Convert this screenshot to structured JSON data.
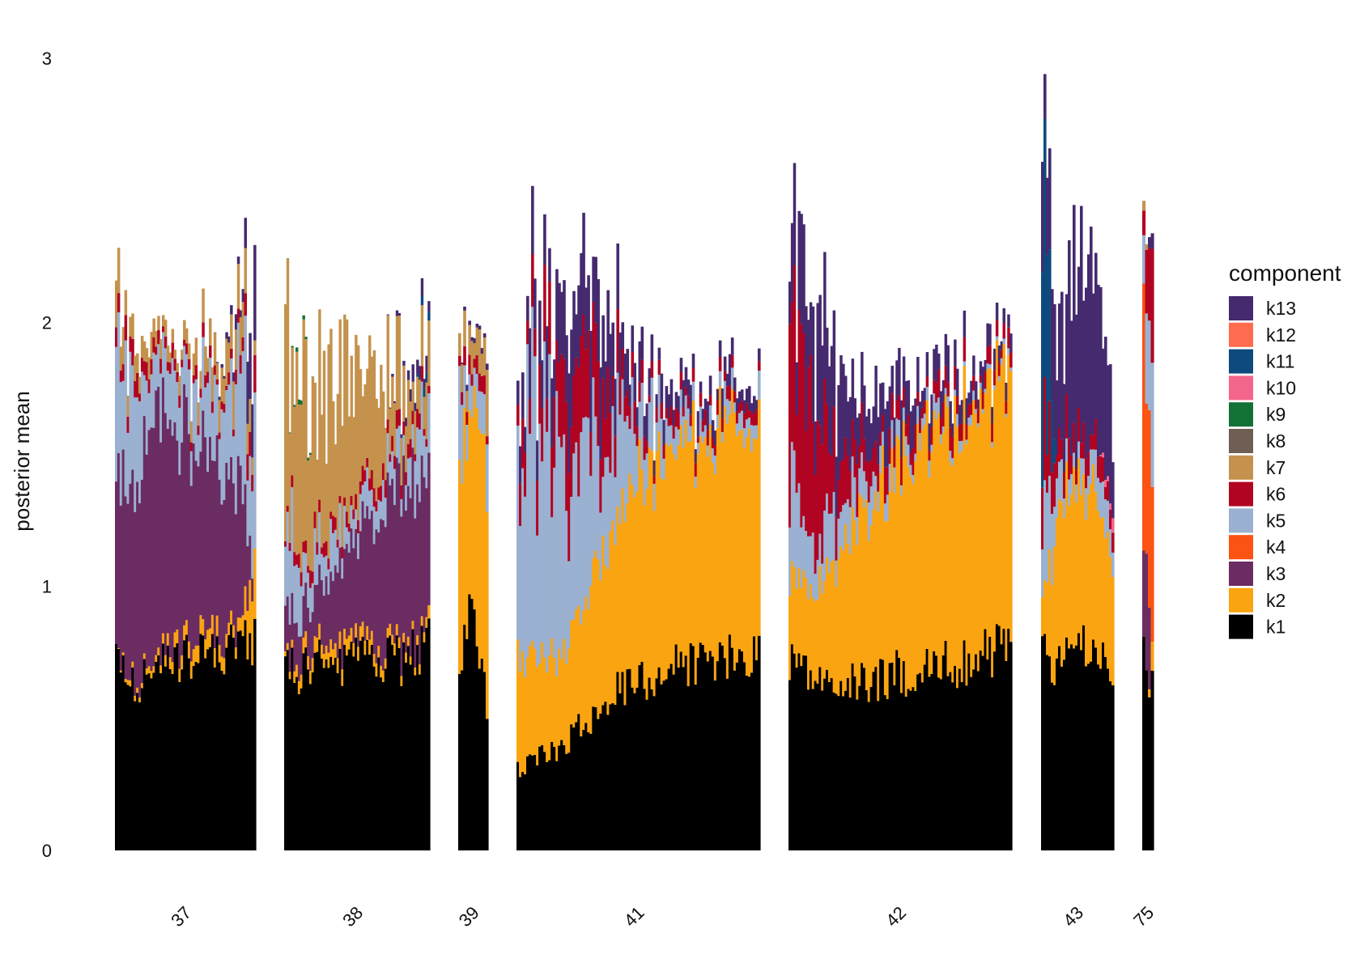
{
  "chart_data": {
    "type": "bar",
    "subtype": "stacked-bar-facets",
    "title": "",
    "xlabel": "",
    "ylabel": "posterior mean",
    "ylim": [
      0,
      3
    ],
    "yticks": [
      "0",
      "1",
      "2",
      "3"
    ],
    "grid": false,
    "legend_position": "right",
    "legend_title": "component",
    "legend_order": [
      "k13",
      "k12",
      "k11",
      "k10",
      "k9",
      "k8",
      "k7",
      "k6",
      "k5",
      "k4",
      "k3",
      "k2",
      "k1"
    ],
    "component_colors": {
      "k1": "#000000",
      "k2": "#FAA411",
      "k3": "#6B2C62",
      "k4": "#FC5212",
      "k5": "#9BB1D1",
      "k6": "#B10422",
      "k7": "#C5924D",
      "k8": "#6E5E54",
      "k9": "#137135",
      "k10": "#F3658B",
      "k11": "#0E4A7D",
      "k12": "#FF6B4E",
      "k13": "#452A6F"
    },
    "facets": [
      {
        "label": "37",
        "points": [
          {
            "k1": 0.75,
            "k2": 0.0,
            "k3": 0.65,
            "k5": 0.45,
            "k6": 0.05,
            "k7": 0.15,
            "k13": 0.0
          },
          {
            "k1": 0.62,
            "k2": 0.02,
            "k3": 0.75,
            "k5": 0.4,
            "k6": 0.08,
            "k7": 0.08,
            "k13": 0.0
          },
          {
            "k1": 0.66,
            "k2": 0.02,
            "k3": 0.85,
            "k5": 0.3,
            "k6": 0.05,
            "k7": 0.08,
            "k13": 0.0
          },
          {
            "k1": 0.68,
            "k2": 0.03,
            "k3": 0.9,
            "k5": 0.22,
            "k6": 0.04,
            "k7": 0.06,
            "k13": 0.0
          },
          {
            "k1": 0.7,
            "k2": 0.05,
            "k3": 0.85,
            "k5": 0.2,
            "k6": 0.05,
            "k7": 0.05,
            "k13": 0.0
          },
          {
            "k1": 0.72,
            "k2": 0.06,
            "k3": 0.8,
            "k5": 0.2,
            "k6": 0.03,
            "k7": 0.07,
            "k13": 0.0
          },
          {
            "k1": 0.73,
            "k2": 0.06,
            "k3": 0.72,
            "k5": 0.22,
            "k6": 0.04,
            "k7": 0.1,
            "k13": 0.0
          },
          {
            "k1": 0.74,
            "k2": 0.08,
            "k3": 0.65,
            "k5": 0.25,
            "k6": 0.03,
            "k7": 0.1,
            "k13": 0.0
          },
          {
            "k1": 0.75,
            "k2": 0.05,
            "k3": 0.6,
            "k5": 0.3,
            "k6": 0.03,
            "k7": 0.12,
            "k13": 0.02
          },
          {
            "k1": 0.77,
            "k2": 0.05,
            "k3": 0.55,
            "k5": 0.35,
            "k6": 0.05,
            "k7": 0.15,
            "k13": 0.05
          },
          {
            "k1": 0.8,
            "k2": 0.3,
            "k3": 0.0,
            "k5": 0.6,
            "k6": 0.1,
            "k7": 0.1,
            "k13": 0.3
          }
        ]
      },
      {
        "label": "38",
        "points": [
          {
            "k1": 0.7,
            "k2": 0.02,
            "k3": 0.2,
            "k5": 0.35,
            "k6": 0.03,
            "k7": 0.75,
            "k9": 0.0,
            "k13": 0.0
          },
          {
            "k1": 0.68,
            "k2": 0.05,
            "k3": 0.15,
            "k5": 0.2,
            "k6": 0.04,
            "k7": 0.65,
            "k9": 0.02,
            "k13": 0.0
          },
          {
            "k1": 0.7,
            "k2": 0.06,
            "k3": 0.18,
            "k5": 0.15,
            "k6": 0.05,
            "k7": 0.6,
            "k9": 0.0,
            "k13": 0.0
          },
          {
            "k1": 0.72,
            "k2": 0.06,
            "k3": 0.25,
            "k5": 0.15,
            "k6": 0.05,
            "k7": 0.55,
            "k9": 0.0,
            "k13": 0.0
          },
          {
            "k1": 0.7,
            "k2": 0.06,
            "k3": 0.32,
            "k5": 0.12,
            "k6": 0.04,
            "k7": 0.5,
            "k9": 0.0,
            "k13": 0.0
          },
          {
            "k1": 0.72,
            "k2": 0.05,
            "k3": 0.38,
            "k5": 0.12,
            "k6": 0.05,
            "k7": 0.45,
            "k9": 0.0,
            "k13": 0.0
          },
          {
            "k1": 0.7,
            "k2": 0.05,
            "k3": 0.45,
            "k5": 0.12,
            "k6": 0.05,
            "k7": 0.38,
            "k9": 0.0,
            "k13": 0.0
          },
          {
            "k1": 0.72,
            "k2": 0.04,
            "k3": 0.52,
            "k5": 0.12,
            "k6": 0.05,
            "k7": 0.32,
            "k9": 0.0,
            "k13": 0.0
          },
          {
            "k1": 0.72,
            "k2": 0.04,
            "k3": 0.6,
            "k5": 0.12,
            "k6": 0.05,
            "k7": 0.25,
            "k9": 0.0,
            "k13": 0.02
          },
          {
            "k1": 0.75,
            "k2": 0.03,
            "k3": 0.65,
            "k5": 0.15,
            "k6": 0.05,
            "k7": 0.2,
            "k9": 0.0,
            "k13": 0.05
          },
          {
            "k1": 0.8,
            "k2": 0.05,
            "k3": 0.55,
            "k5": 0.3,
            "k6": 0.05,
            "k7": 0.2,
            "k9": 0.0,
            "k11": 0.05,
            "k13": 0.05
          }
        ]
      },
      {
        "label": "39",
        "points": [
          {
            "k1": 0.75,
            "k2": 0.75,
            "k5": 0.25,
            "k6": 0.05,
            "k7": 0.15,
            "k13": 0.0
          },
          {
            "k1": 0.85,
            "k2": 0.75,
            "k5": 0.15,
            "k6": 0.05,
            "k7": 0.15,
            "k13": 0.02
          },
          {
            "k1": 0.9,
            "k2": 0.75,
            "k5": 0.1,
            "k6": 0.05,
            "k7": 0.1,
            "k13": 0.02
          },
          {
            "k1": 0.75,
            "k2": 0.85,
            "k5": 0.1,
            "k6": 0.05,
            "k7": 0.15,
            "k13": 0.02
          },
          {
            "k1": 0.55,
            "k2": 0.9,
            "k5": 0.2,
            "k6": 0.05,
            "k7": 0.2,
            "k13": 0.02
          }
        ]
      },
      {
        "label": "41",
        "points": [
          {
            "k1": 0.3,
            "k2": 0.45,
            "k5": 0.9,
            "k6": 0.15,
            "k13": 0.15
          },
          {
            "k1": 0.35,
            "k2": 0.35,
            "k5": 0.85,
            "k6": 0.2,
            "k13": 0.2
          },
          {
            "k1": 0.4,
            "k2": 0.35,
            "k5": 0.7,
            "k6": 0.3,
            "k13": 0.25
          },
          {
            "k1": 0.48,
            "k2": 0.45,
            "k5": 0.55,
            "k6": 0.35,
            "k13": 0.3
          },
          {
            "k1": 0.58,
            "k2": 0.6,
            "k5": 0.4,
            "k6": 0.25,
            "k13": 0.25
          },
          {
            "k1": 0.62,
            "k2": 0.72,
            "k5": 0.3,
            "k6": 0.1,
            "k13": 0.12
          },
          {
            "k1": 0.65,
            "k2": 0.8,
            "k5": 0.2,
            "k6": 0.05,
            "k13": 0.1
          },
          {
            "k1": 0.7,
            "k2": 0.8,
            "k5": 0.12,
            "k6": 0.05,
            "k13": 0.08
          },
          {
            "k1": 0.72,
            "k2": 0.85,
            "k5": 0.08,
            "k6": 0.04,
            "k13": 0.08
          },
          {
            "k1": 0.72,
            "k2": 0.85,
            "k5": 0.08,
            "k6": 0.04,
            "k13": 0.08
          },
          {
            "k1": 0.72,
            "k2": 0.87,
            "k5": 0.06,
            "k6": 0.04,
            "k13": 0.08
          },
          {
            "k1": 0.75,
            "k2": 0.85,
            "k5": 0.08,
            "k6": 0.04,
            "k13": 0.05
          }
        ]
      },
      {
        "label": "42",
        "points": [
          {
            "k1": 0.75,
            "k2": 0.3,
            "k5": 0.35,
            "k6": 0.6,
            "k13": 0.3
          },
          {
            "k1": 0.65,
            "k2": 0.3,
            "k5": 0.2,
            "k6": 0.5,
            "k13": 0.35
          },
          {
            "k1": 0.62,
            "k2": 0.45,
            "k5": 0.2,
            "k6": 0.25,
            "k13": 0.3
          },
          {
            "k1": 0.63,
            "k2": 0.65,
            "k5": 0.12,
            "k6": 0.15,
            "k13": 0.25
          },
          {
            "k1": 0.65,
            "k2": 0.7,
            "k5": 0.1,
            "k6": 0.1,
            "k13": 0.2
          },
          {
            "k1": 0.67,
            "k2": 0.8,
            "k5": 0.06,
            "k6": 0.08,
            "k13": 0.15
          },
          {
            "k1": 0.68,
            "k2": 0.85,
            "k5": 0.05,
            "k6": 0.08,
            "k13": 0.1
          },
          {
            "k1": 0.7,
            "k2": 0.9,
            "k5": 0.04,
            "k6": 0.07,
            "k13": 0.1
          },
          {
            "k1": 0.72,
            "k2": 0.95,
            "k5": 0.03,
            "k6": 0.06,
            "k13": 0.08
          },
          {
            "k1": 0.75,
            "k2": 0.98,
            "k5": 0.02,
            "k6": 0.05,
            "k13": 0.06
          },
          {
            "k1": 0.8,
            "k2": 1.0,
            "k5": 0.02,
            "k6": 0.06,
            "k13": 0.05
          }
        ]
      },
      {
        "label": "43",
        "points": [
          {
            "k1": 0.75,
            "k2": 0.15,
            "k5": 0.3,
            "k6": 0.3,
            "k11": 0.9,
            "k13": 0.3
          },
          {
            "k1": 0.72,
            "k2": 0.55,
            "k5": 0.15,
            "k6": 0.15,
            "k13": 0.45
          },
          {
            "k1": 0.75,
            "k2": 0.6,
            "k5": 0.1,
            "k6": 0.1,
            "k13": 0.55
          },
          {
            "k1": 0.75,
            "k2": 0.65,
            "k5": 0.1,
            "k6": 0.1,
            "k13": 0.7
          },
          {
            "k1": 0.72,
            "k2": 0.55,
            "k5": 0.12,
            "k6": 0.08,
            "k13": 0.5
          },
          {
            "k1": 0.7,
            "k2": 0.45,
            "k5": 0.15,
            "k6": 0.1,
            "k10": 0.05,
            "k13": 0.35
          }
        ]
      },
      {
        "label": "75",
        "points": [
          {
            "k1": 0.8,
            "k3": 0.3,
            "k4": 1.0,
            "k5": 0.3,
            "k6": 0.15,
            "k7": 0.05
          },
          {
            "k1": 0.7,
            "k3": 0.45,
            "k4": 0.95,
            "k5": 0.25,
            "k6": 0.3
          },
          {
            "k1": 0.6,
            "k2": 0.1,
            "k4": 0.6,
            "k5": 0.55,
            "k6": 0.35,
            "k13": 0.1
          }
        ]
      }
    ]
  }
}
